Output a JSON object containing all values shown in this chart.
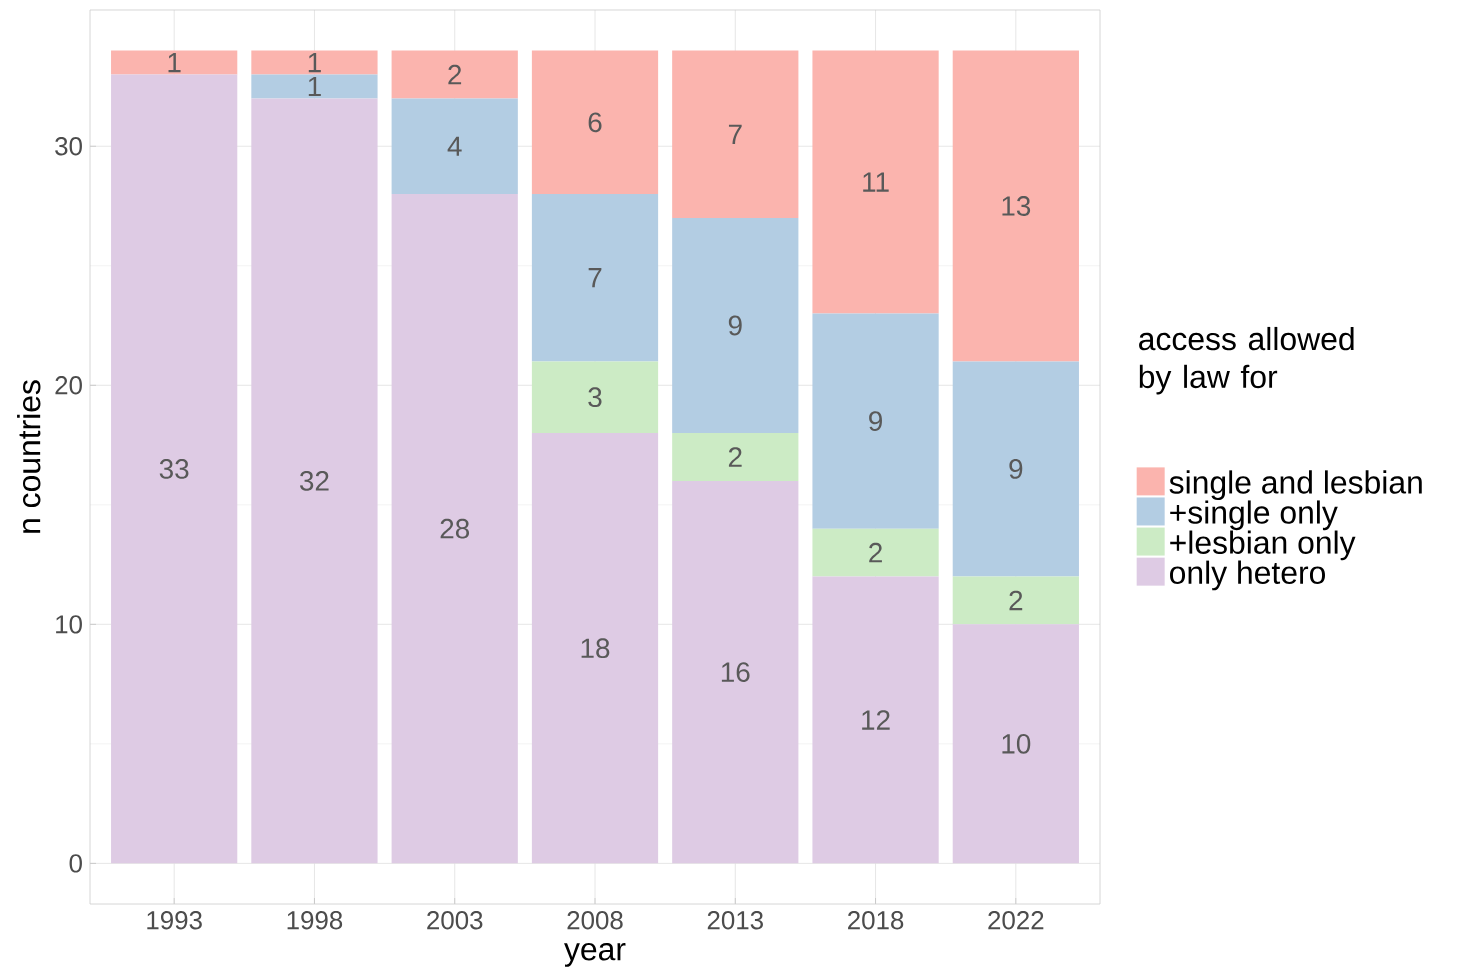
{
  "chart_data": {
    "type": "bar",
    "stacked": true,
    "xlabel": "year",
    "ylabel": "n countries",
    "legend_title": "access allowed by law for",
    "categories": [
      "1993",
      "1998",
      "2003",
      "2008",
      "2013",
      "2018",
      "2022"
    ],
    "series": [
      {
        "name": "only hetero",
        "color": "#decbe4",
        "values": [
          33,
          32,
          28,
          18,
          16,
          12,
          10
        ],
        "value_labels": [
          "33",
          "32",
          "28",
          "18",
          "16",
          "12",
          "10"
        ]
      },
      {
        "name": "+lesbian only",
        "color": "#ccebc5",
        "values": [
          0,
          0,
          0,
          3,
          2,
          2,
          2
        ],
        "value_labels": [
          null,
          null,
          null,
          "3",
          "2",
          "2",
          "2"
        ]
      },
      {
        "name": "+single only",
        "color": "#b3cde3",
        "values": [
          0,
          1,
          4,
          7,
          9,
          9,
          9
        ],
        "value_labels": [
          null,
          "1",
          "4",
          "7",
          "9",
          "9",
          "9"
        ]
      },
      {
        "name": "single and lesbian",
        "color": "#fbb4ae",
        "values": [
          1,
          1,
          2,
          6,
          7,
          11,
          13
        ],
        "value_labels": [
          "1",
          "1",
          "2",
          "6",
          "7",
          "11",
          "13"
        ]
      }
    ],
    "ylim": [
      -1.7,
      35.7
    ],
    "yticks": [
      0,
      10,
      20,
      30
    ],
    "grid": true,
    "legend": "right"
  }
}
